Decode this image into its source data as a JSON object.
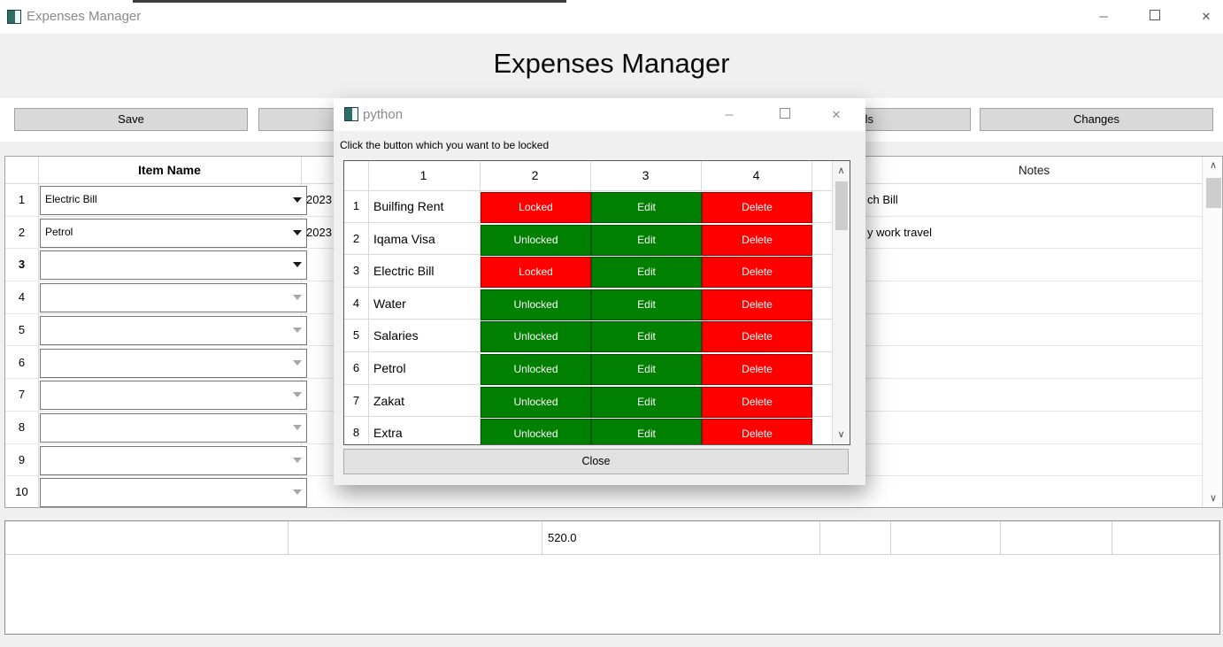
{
  "window": {
    "title": "Expenses Manager",
    "minimize_glyph": "─",
    "close_glyph": "✕"
  },
  "heading": "Expenses Manager",
  "toolbar": {
    "buttons": [
      "Save",
      "",
      "",
      "Totals",
      "Changes"
    ]
  },
  "expense_table": {
    "item_header": "Item Name",
    "notes_header": "Notes",
    "rows": [
      {
        "num": "1",
        "item": "Electric Bill",
        "date": "2023",
        "note": "ch Bill",
        "filled": true,
        "active": false
      },
      {
        "num": "2",
        "item": "Petrol",
        "date": "2023",
        "note": "y work travel",
        "filled": true,
        "active": false
      },
      {
        "num": "3",
        "item": "",
        "date": "",
        "note": "",
        "filled": true,
        "active": true
      },
      {
        "num": "4",
        "item": "",
        "date": "",
        "note": "",
        "filled": false,
        "active": false
      },
      {
        "num": "5",
        "item": "",
        "date": "",
        "note": "",
        "filled": false,
        "active": false
      },
      {
        "num": "6",
        "item": "",
        "date": "",
        "note": "",
        "filled": false,
        "active": false
      },
      {
        "num": "7",
        "item": "",
        "date": "",
        "note": "",
        "filled": false,
        "active": false
      },
      {
        "num": "8",
        "item": "",
        "date": "",
        "note": "",
        "filled": false,
        "active": false
      },
      {
        "num": "9",
        "item": "",
        "date": "",
        "note": "",
        "filled": false,
        "active": false
      },
      {
        "num": "10",
        "item": "",
        "date": "",
        "note": "",
        "filled": false,
        "active": false
      }
    ]
  },
  "summary": {
    "cells": [
      "",
      "",
      "520.0",
      "",
      "",
      "",
      ""
    ]
  },
  "dialog": {
    "title": "python",
    "instruction": "Click the button which you want to be locked",
    "close_label": "Close",
    "table": {
      "headers": [
        "1",
        "2",
        "3",
        "4"
      ],
      "rows": [
        {
          "num": "1",
          "name": "Builfing Rent",
          "lock": "Locked",
          "lock_state": "locked",
          "edit": "Edit",
          "delete": "Delete"
        },
        {
          "num": "2",
          "name": "Iqama Visa",
          "lock": "Unlocked",
          "lock_state": "unlocked",
          "edit": "Edit",
          "delete": "Delete"
        },
        {
          "num": "3",
          "name": "Electric Bill",
          "lock": "Locked",
          "lock_state": "locked",
          "edit": "Edit",
          "delete": "Delete"
        },
        {
          "num": "4",
          "name": "Water",
          "lock": "Unlocked",
          "lock_state": "unlocked",
          "edit": "Edit",
          "delete": "Delete"
        },
        {
          "num": "5",
          "name": "Salaries",
          "lock": "Unlocked",
          "lock_state": "unlocked",
          "edit": "Edit",
          "delete": "Delete"
        },
        {
          "num": "6",
          "name": "Petrol",
          "lock": "Unlocked",
          "lock_state": "unlocked",
          "edit": "Edit",
          "delete": "Delete"
        },
        {
          "num": "7",
          "name": "Zakat",
          "lock": "Unlocked",
          "lock_state": "unlocked",
          "edit": "Edit",
          "delete": "Delete"
        },
        {
          "num": "8",
          "name": "Extra",
          "lock": "Unlocked",
          "lock_state": "unlocked",
          "edit": "Edit",
          "delete": "Delete"
        }
      ]
    }
  },
  "icons": {
    "scroll_up": "∧",
    "scroll_down": "∨"
  },
  "colors": {
    "locked": "#ff0000",
    "unlocked": "#008000",
    "edit": "#008000",
    "delete": "#ff0000"
  }
}
